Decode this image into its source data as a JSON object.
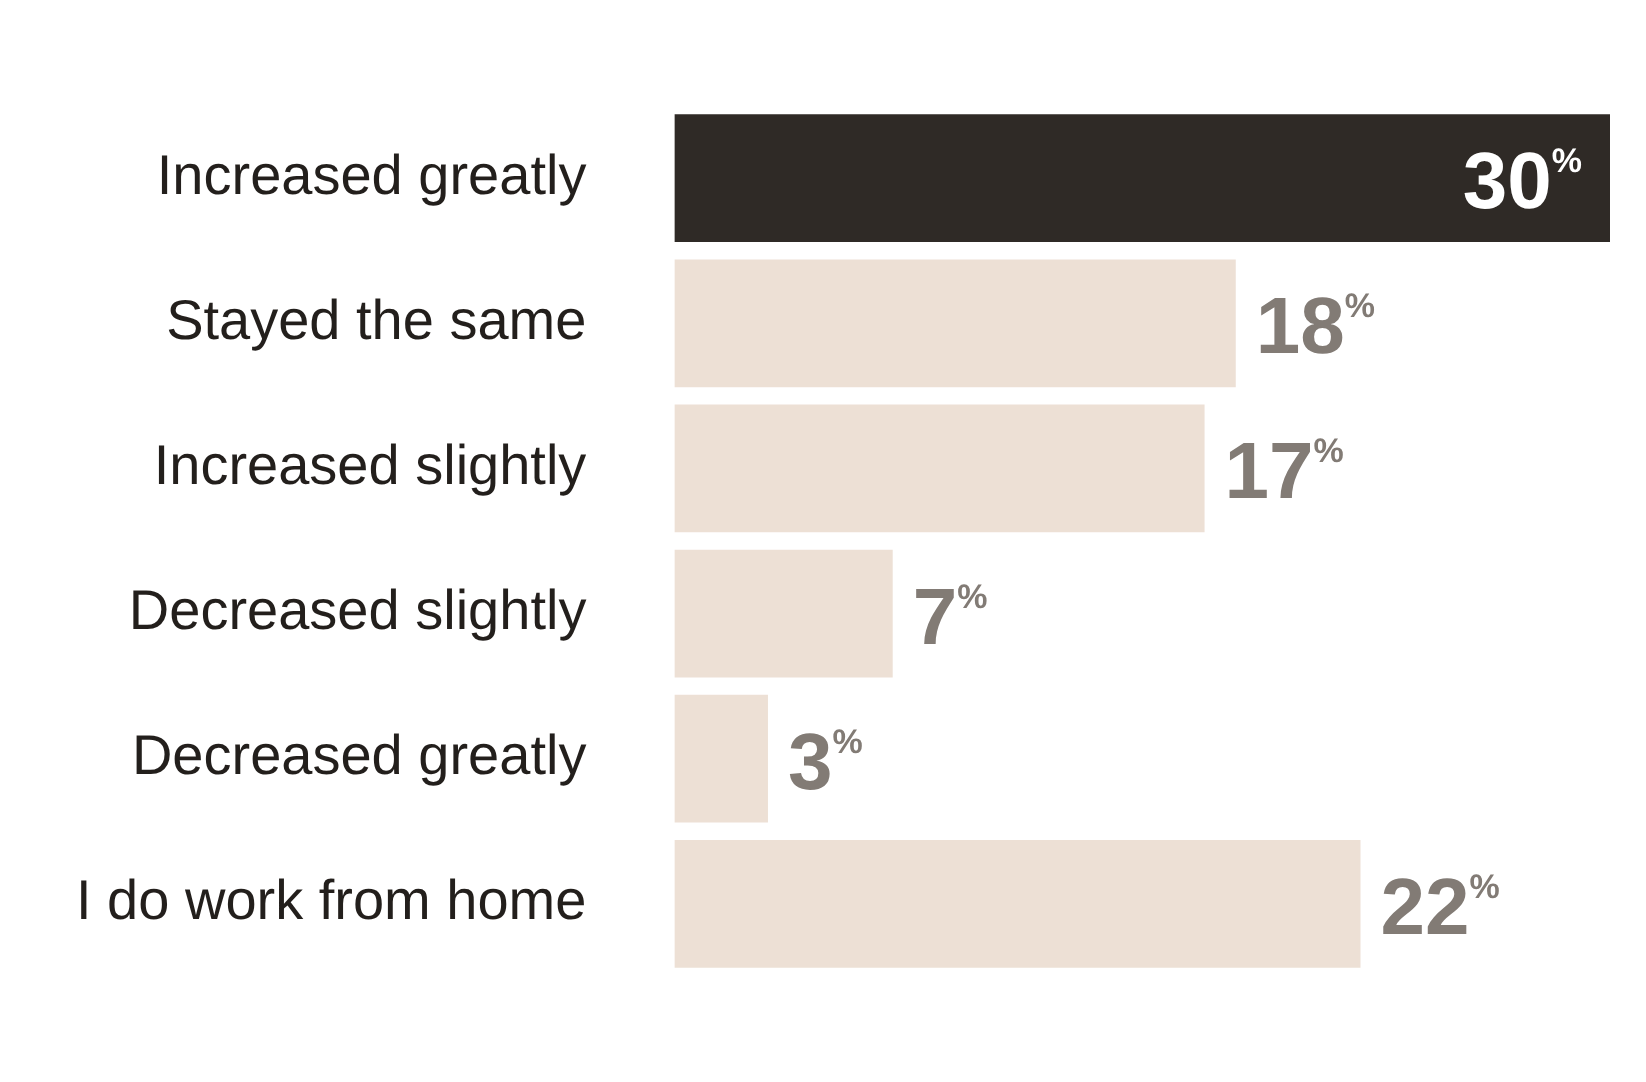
{
  "chart_data": {
    "type": "bar",
    "orientation": "horizontal",
    "categories": [
      "Increased greatly",
      "Stayed the same",
      "Increased slightly",
      "Decreased slightly",
      "Decreased greatly",
      "I do work from home"
    ],
    "values": [
      30,
      18,
      17,
      7,
      3,
      22
    ],
    "colors": [
      "#2f2a26",
      "#ede0d5",
      "#ede0d5",
      "#ede0d5",
      "#ede0d5",
      "#ede0d5"
    ],
    "value_labels": [
      "30$^{%}$",
      "18$^{%}$",
      "17$^{%}$",
      "7$^{%}$",
      "3$^{%}$",
      "22$^{%}$"
    ],
    "xlim": [
      0,
      30
    ],
    "tick_labels": "y",
    "legend": false
  }
}
